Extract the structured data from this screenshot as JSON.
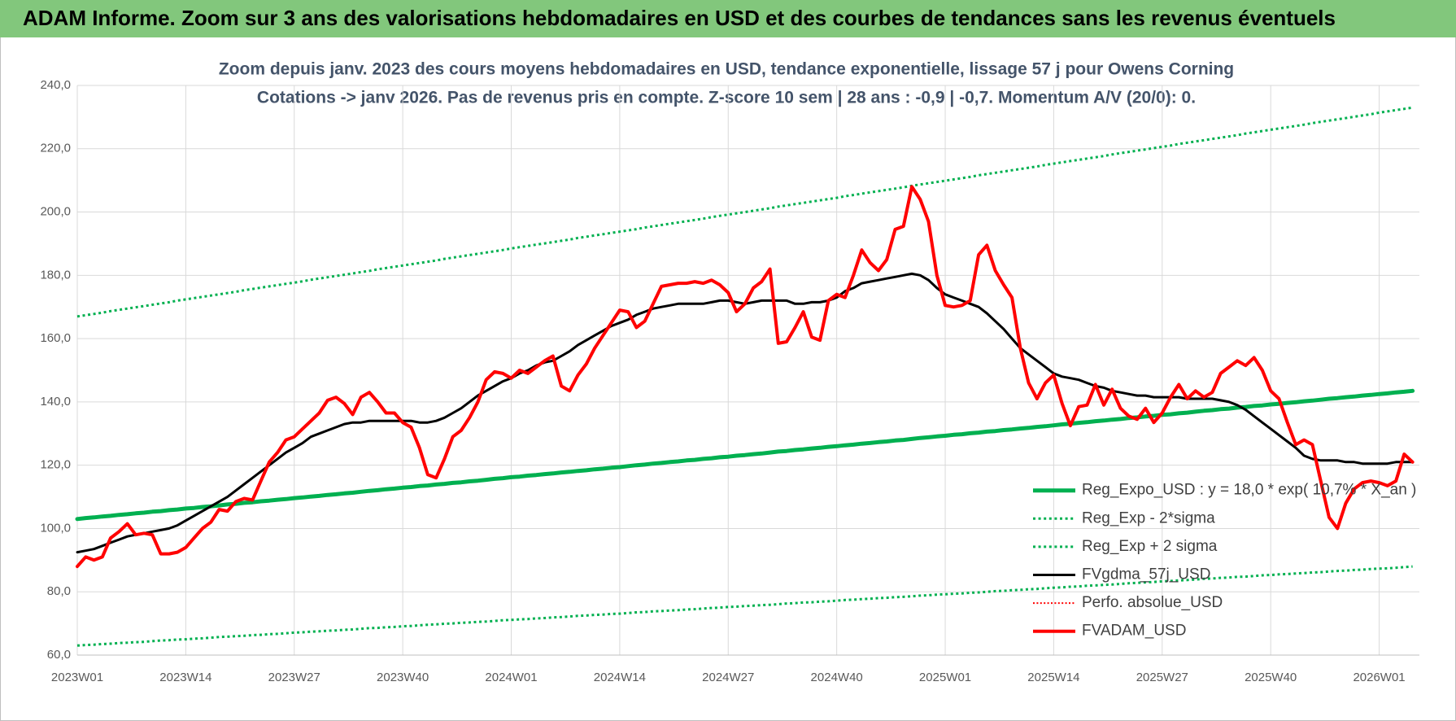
{
  "header": {
    "title": "ADAM Informe. Zoom sur 3 ans des valorisations hebdomadaires en USD et des courbes de tendances sans les revenus éventuels"
  },
  "chart_data": {
    "type": "line",
    "title": "Zoom depuis janv. 2023 des cours moyens hebdomadaires en USD, tendance exponentielle, lissage 57 j pour Owens Corning",
    "subtitle": "Cotations -> janv 2026. Pas de revenus pris en compte. Z-score 10 sem | 28 ans : -0,9 | -0,7. Momentum A/V (20/0): 0.",
    "categories": [
      "2023W01",
      null,
      null,
      null,
      null,
      null,
      null,
      null,
      null,
      null,
      null,
      null,
      null,
      "2023W14",
      null,
      null,
      null,
      null,
      null,
      null,
      null,
      null,
      null,
      null,
      null,
      null,
      "2023W27",
      null,
      null,
      null,
      null,
      null,
      null,
      null,
      null,
      null,
      null,
      null,
      null,
      "2023W40",
      null,
      null,
      null,
      null,
      null,
      null,
      null,
      null,
      null,
      null,
      null,
      null,
      "2024W01",
      null,
      null,
      null,
      null,
      null,
      null,
      null,
      null,
      null,
      null,
      null,
      null,
      "2024W14",
      null,
      null,
      null,
      null,
      null,
      null,
      null,
      null,
      null,
      null,
      null,
      null,
      "2024W27",
      null,
      null,
      null,
      null,
      null,
      null,
      null,
      null,
      null,
      null,
      null,
      null,
      "2024W40",
      null,
      null,
      null,
      null,
      null,
      null,
      null,
      null,
      null,
      null,
      null,
      null,
      "2025W01",
      null,
      null,
      null,
      null,
      null,
      null,
      null,
      null,
      null,
      null,
      null,
      null,
      "2025W14",
      null,
      null,
      null,
      null,
      null,
      null,
      null,
      null,
      null,
      null,
      null,
      null,
      "2025W27",
      null,
      null,
      null,
      null,
      null,
      null,
      null,
      null,
      null,
      null,
      null,
      null,
      "2025W40",
      null,
      null,
      null,
      null,
      null,
      null,
      null,
      null,
      null,
      null,
      null,
      null,
      "2026W01",
      null,
      null,
      null,
      null
    ],
    "ylim": [
      60,
      240
    ],
    "yticks": [
      {
        "value": 60,
        "label": "60,0"
      },
      {
        "value": 80,
        "label": "80,0"
      },
      {
        "value": 100,
        "label": "100,0"
      },
      {
        "value": 120,
        "label": "120,0"
      },
      {
        "value": 140,
        "label": "140,0"
      },
      {
        "value": 160,
        "label": "160,0"
      },
      {
        "value": 180,
        "label": "180,0"
      },
      {
        "value": 200,
        "label": "200,0"
      },
      {
        "value": 220,
        "label": "220,0"
      },
      {
        "value": 240,
        "label": "240,0"
      }
    ],
    "grid": true,
    "legend": "lower right",
    "series": [
      {
        "name": "Reg_Expo_USD : y = 18,0 * exp( 10,7% * X_an )",
        "color": "#00b050",
        "style": "solid",
        "width": 5,
        "values": [
          103.0,
          103.3,
          103.5,
          103.8,
          104.0,
          104.3,
          104.5,
          104.8,
          105.0,
          105.3,
          105.5,
          105.8,
          106.0,
          106.3,
          106.5,
          106.8,
          107.0,
          107.3,
          107.6,
          107.8,
          108.1,
          108.3,
          108.6,
          108.8,
          109.1,
          109.3,
          109.6,
          109.8,
          110.1,
          110.3,
          110.6,
          110.8,
          111.1,
          111.3,
          111.6,
          111.9,
          112.1,
          112.4,
          112.6,
          112.9,
          113.1,
          113.4,
          113.6,
          113.9,
          114.1,
          114.4,
          114.6,
          114.9,
          115.1,
          115.4,
          115.7,
          115.9,
          116.2,
          116.4,
          116.7,
          116.9,
          117.2,
          117.4,
          117.7,
          117.9,
          118.2,
          118.4,
          118.7,
          118.9,
          119.2,
          119.4,
          119.7,
          120.0,
          120.2,
          120.5,
          120.7,
          121.0,
          121.2,
          121.5,
          121.7,
          122.0,
          122.2,
          122.5,
          122.7,
          123.0,
          123.2,
          123.5,
          123.7,
          124.0,
          124.3,
          124.5,
          124.8,
          125.0,
          125.3,
          125.5,
          125.8,
          126.0,
          126.3,
          126.5,
          126.8,
          127.0,
          127.3,
          127.5,
          127.8,
          128.0,
          128.3,
          128.6,
          128.8,
          129.1,
          129.3,
          129.6,
          129.8,
          130.1,
          130.3,
          130.6,
          130.8,
          131.1,
          131.3,
          131.6,
          131.8,
          132.1,
          132.3,
          132.6,
          132.9,
          133.1,
          133.4,
          133.6,
          133.9,
          134.1,
          134.4,
          134.6,
          134.9,
          135.1,
          135.4,
          135.6,
          135.9,
          136.1,
          136.4,
          136.6,
          136.9,
          137.2,
          137.4,
          137.7,
          137.9,
          138.2,
          138.4,
          138.7,
          138.9,
          139.2,
          139.4,
          139.7,
          139.9,
          140.2,
          140.4,
          140.7,
          141.0,
          141.2,
          141.5,
          141.7,
          142.0,
          142.2,
          142.5,
          142.7,
          143.0,
          143.2,
          143.5
        ]
      },
      {
        "name": "Reg_Exp - 2*sigma",
        "color": "#00b050",
        "style": "dotted",
        "width": 3,
        "values": [
          63.0,
          63.2,
          63.3,
          63.5,
          63.6,
          63.8,
          63.9,
          64.1,
          64.2,
          64.4,
          64.6,
          64.7,
          64.9,
          65.0,
          65.2,
          65.3,
          65.5,
          65.7,
          65.8,
          66.0,
          66.1,
          66.3,
          66.4,
          66.6,
          66.7,
          66.9,
          67.1,
          67.2,
          67.4,
          67.5,
          67.7,
          67.8,
          68.0,
          68.1,
          68.3,
          68.5,
          68.6,
          68.8,
          68.9,
          69.1,
          69.2,
          69.4,
          69.6,
          69.7,
          69.9,
          70.0,
          70.2,
          70.3,
          70.5,
          70.6,
          70.8,
          71.0,
          71.1,
          71.3,
          71.4,
          71.6,
          71.7,
          71.9,
          72.0,
          72.2,
          72.4,
          72.5,
          72.7,
          72.8,
          73.0,
          73.1,
          73.3,
          73.5,
          73.6,
          73.8,
          73.9,
          74.1,
          74.2,
          74.4,
          74.5,
          74.7,
          74.9,
          75.0,
          75.2,
          75.3,
          75.5,
          75.6,
          75.8,
          75.9,
          76.1,
          76.3,
          76.4,
          76.6,
          76.7,
          76.9,
          77.0,
          77.2,
          77.4,
          77.5,
          77.7,
          77.8,
          78.0,
          78.1,
          78.3,
          78.4,
          78.6,
          78.8,
          78.9,
          79.1,
          79.2,
          79.4,
          79.5,
          79.7,
          79.8,
          80.0,
          80.2,
          80.3,
          80.5,
          80.6,
          80.8,
          80.9,
          81.1,
          81.3,
          81.4,
          81.6,
          81.7,
          81.9,
          82.0,
          82.2,
          82.3,
          82.5,
          82.7,
          82.8,
          83.0,
          83.1,
          83.3,
          83.4,
          83.6,
          83.7,
          83.9,
          84.1,
          84.2,
          84.4,
          84.5,
          84.7,
          84.8,
          85.0,
          85.2,
          85.3,
          85.5,
          85.6,
          85.8,
          85.9,
          86.1,
          86.2,
          86.4,
          86.6,
          86.7,
          86.9,
          87.0,
          87.2,
          87.3,
          87.4,
          87.6,
          87.8,
          88.0
        ]
      },
      {
        "name": "Reg_Exp + 2 sigma",
        "color": "#00b050",
        "style": "dotted",
        "width": 3,
        "values": [
          167.0,
          167.4,
          167.8,
          168.2,
          168.7,
          169.1,
          169.5,
          169.9,
          170.3,
          170.7,
          171.1,
          171.5,
          172.0,
          172.4,
          172.8,
          173.2,
          173.6,
          174.0,
          174.4,
          174.8,
          175.3,
          175.7,
          176.1,
          176.5,
          176.9,
          177.3,
          177.7,
          178.1,
          178.6,
          179.0,
          179.4,
          179.8,
          180.2,
          180.6,
          181.0,
          181.4,
          181.9,
          182.3,
          182.7,
          183.1,
          183.5,
          183.9,
          184.3,
          184.7,
          185.2,
          185.6,
          186.0,
          186.4,
          186.8,
          187.2,
          187.6,
          188.0,
          188.5,
          188.9,
          189.3,
          189.7,
          190.1,
          190.5,
          190.9,
          191.3,
          191.8,
          192.2,
          192.6,
          193.0,
          193.4,
          193.8,
          194.2,
          194.6,
          195.1,
          195.5,
          195.9,
          196.3,
          196.7,
          197.1,
          197.5,
          197.9,
          198.4,
          198.8,
          199.2,
          199.6,
          200.0,
          200.4,
          200.8,
          201.2,
          201.7,
          202.1,
          202.5,
          202.9,
          203.3,
          203.7,
          204.1,
          204.5,
          205.0,
          205.4,
          205.8,
          206.2,
          206.6,
          207.0,
          207.4,
          207.8,
          208.3,
          208.7,
          209.1,
          209.5,
          209.9,
          210.3,
          210.7,
          211.1,
          211.6,
          212.0,
          212.4,
          212.8,
          213.2,
          213.6,
          214.0,
          214.4,
          214.9,
          215.3,
          215.7,
          216.1,
          216.5,
          216.9,
          217.3,
          217.7,
          218.2,
          218.6,
          219.0,
          219.4,
          219.8,
          220.2,
          220.6,
          221.0,
          221.5,
          221.9,
          222.3,
          222.7,
          223.1,
          223.5,
          223.9,
          224.3,
          224.8,
          225.2,
          225.6,
          226.0,
          226.4,
          226.8,
          227.2,
          227.6,
          228.1,
          228.5,
          228.9,
          229.3,
          229.7,
          230.1,
          230.5,
          230.9,
          231.4,
          231.8,
          232.2,
          232.6,
          233.0
        ]
      },
      {
        "name": "FVgdma_57j_USD",
        "color": "#000000",
        "style": "solid",
        "width": 3,
        "values": [
          92.5,
          93,
          93.5,
          94.5,
          95.5,
          96.5,
          97.5,
          98,
          98.5,
          99,
          99.5,
          100,
          101,
          102.5,
          104,
          105.5,
          107,
          108.5,
          110,
          112,
          114,
          116,
          118,
          120,
          122,
          124,
          125.5,
          127,
          129,
          130,
          131,
          132,
          133,
          133.5,
          133.5,
          134,
          134,
          134,
          134,
          134,
          134,
          133.5,
          133.5,
          134,
          135,
          136.5,
          138,
          140,
          142,
          143.5,
          145,
          146.5,
          147.5,
          149,
          150,
          151.5,
          152.5,
          153,
          154.5,
          156,
          158,
          159.5,
          161,
          162.5,
          164,
          165,
          166,
          167.5,
          168.5,
          169.5,
          170,
          170.5,
          171,
          171,
          171,
          171,
          171.5,
          172,
          172,
          171.5,
          171,
          171.5,
          172,
          172,
          172,
          172,
          171,
          171,
          171.5,
          171.5,
          172,
          173,
          175,
          176,
          177.5,
          178,
          178.5,
          179,
          179.5,
          180,
          180.5,
          180,
          178.5,
          176,
          174,
          173,
          172,
          171,
          170,
          168,
          165.5,
          163,
          160,
          157,
          155,
          153,
          151,
          149,
          148,
          147.5,
          147,
          146,
          145,
          144.5,
          143.5,
          143,
          142.5,
          142,
          142,
          141.5,
          141.5,
          141.5,
          141.5,
          141,
          141,
          141,
          141,
          140.5,
          140,
          139,
          137.5,
          135.5,
          133.5,
          131.5,
          129.5,
          127.5,
          125.5,
          123,
          122,
          121.5,
          121.5,
          121.5,
          121,
          121,
          120.5,
          120.5,
          120.5,
          120.5,
          121,
          121,
          121
        ]
      },
      {
        "name": "Perfo. absolue_USD",
        "color": "#ff0000",
        "style": "dotted",
        "width": 2,
        "values": [
          null,
          null,
          null,
          null,
          null,
          null,
          null,
          null,
          null,
          null,
          null,
          null,
          null,
          null,
          null,
          null,
          null,
          null,
          null,
          null,
          null,
          null,
          null,
          null,
          null,
          null,
          null,
          null,
          null,
          null,
          null,
          null,
          null,
          null,
          null,
          null,
          null,
          null,
          null,
          null,
          null,
          null,
          null,
          null,
          null,
          null,
          null,
          null,
          null,
          null,
          null,
          null,
          null,
          null,
          null,
          null,
          null,
          null,
          null,
          null,
          null,
          null,
          null,
          null,
          null,
          null,
          null,
          null,
          null,
          null,
          null,
          null,
          null,
          null,
          null,
          null,
          null,
          null,
          null,
          null,
          null,
          null,
          null,
          null,
          null,
          null,
          null,
          null,
          null,
          null,
          null,
          null,
          null,
          null,
          null,
          null,
          null,
          null,
          null,
          null,
          null,
          null,
          null,
          null,
          null,
          null,
          null,
          null,
          null,
          null,
          null,
          null,
          null,
          null,
          null,
          null,
          null,
          null,
          null,
          null,
          null,
          null,
          null,
          null,
          null,
          null,
          null,
          null,
          null,
          null,
          null,
          null,
          null,
          null,
          null,
          null,
          null,
          null,
          null,
          null,
          null,
          null,
          null,
          null,
          null,
          null,
          null,
          null,
          null,
          null,
          null,
          null,
          null,
          null,
          null,
          null,
          null,
          null,
          null,
          null,
          null
        ]
      },
      {
        "name": "FVADAM_USD",
        "color": "#ff0000",
        "style": "solid",
        "width": 4,
        "values": [
          88,
          91,
          90,
          91,
          97,
          99,
          101.5,
          98,
          98.5,
          98,
          92,
          92,
          92.5,
          94,
          97,
          100,
          102,
          106,
          105.5,
          108.5,
          109.5,
          109,
          115,
          121,
          124,
          128,
          129,
          131.5,
          134,
          136.5,
          140.5,
          141.5,
          139.5,
          136,
          141.5,
          143,
          140,
          136.5,
          136.5,
          133.5,
          132,
          125.5,
          117,
          116,
          122,
          129,
          131,
          135,
          140,
          147,
          149.5,
          149,
          147.5,
          150,
          149,
          151,
          153,
          154.5,
          145,
          143.5,
          148.5,
          152,
          157,
          161,
          165,
          169,
          168.5,
          163.5,
          165.5,
          171,
          176.5,
          177,
          177.5,
          177.5,
          178,
          177.5,
          178.5,
          177,
          174.5,
          168.5,
          171,
          176,
          178,
          182,
          158.5,
          159,
          163.5,
          168.5,
          160.5,
          159.5,
          172,
          174,
          173,
          180,
          188,
          184,
          181.5,
          185,
          194.5,
          195.5,
          208,
          204,
          197,
          180,
          170.5,
          170,
          170.5,
          172,
          186.5,
          189.5,
          181.5,
          177,
          173,
          157,
          146,
          141,
          146,
          148.5,
          139.5,
          132.5,
          138.5,
          139,
          145.5,
          139,
          144,
          138,
          135.5,
          134.5,
          138,
          133.5,
          136.5,
          141.5,
          145.5,
          141,
          143.5,
          141.5,
          143,
          149,
          151,
          153,
          151.5,
          154,
          150,
          143.5,
          141,
          133.5,
          126.5,
          128,
          126.5,
          115,
          103.5,
          100,
          108,
          112.5,
          114.5,
          115,
          114.5,
          113.5,
          115,
          123.5,
          121
        ]
      }
    ]
  }
}
